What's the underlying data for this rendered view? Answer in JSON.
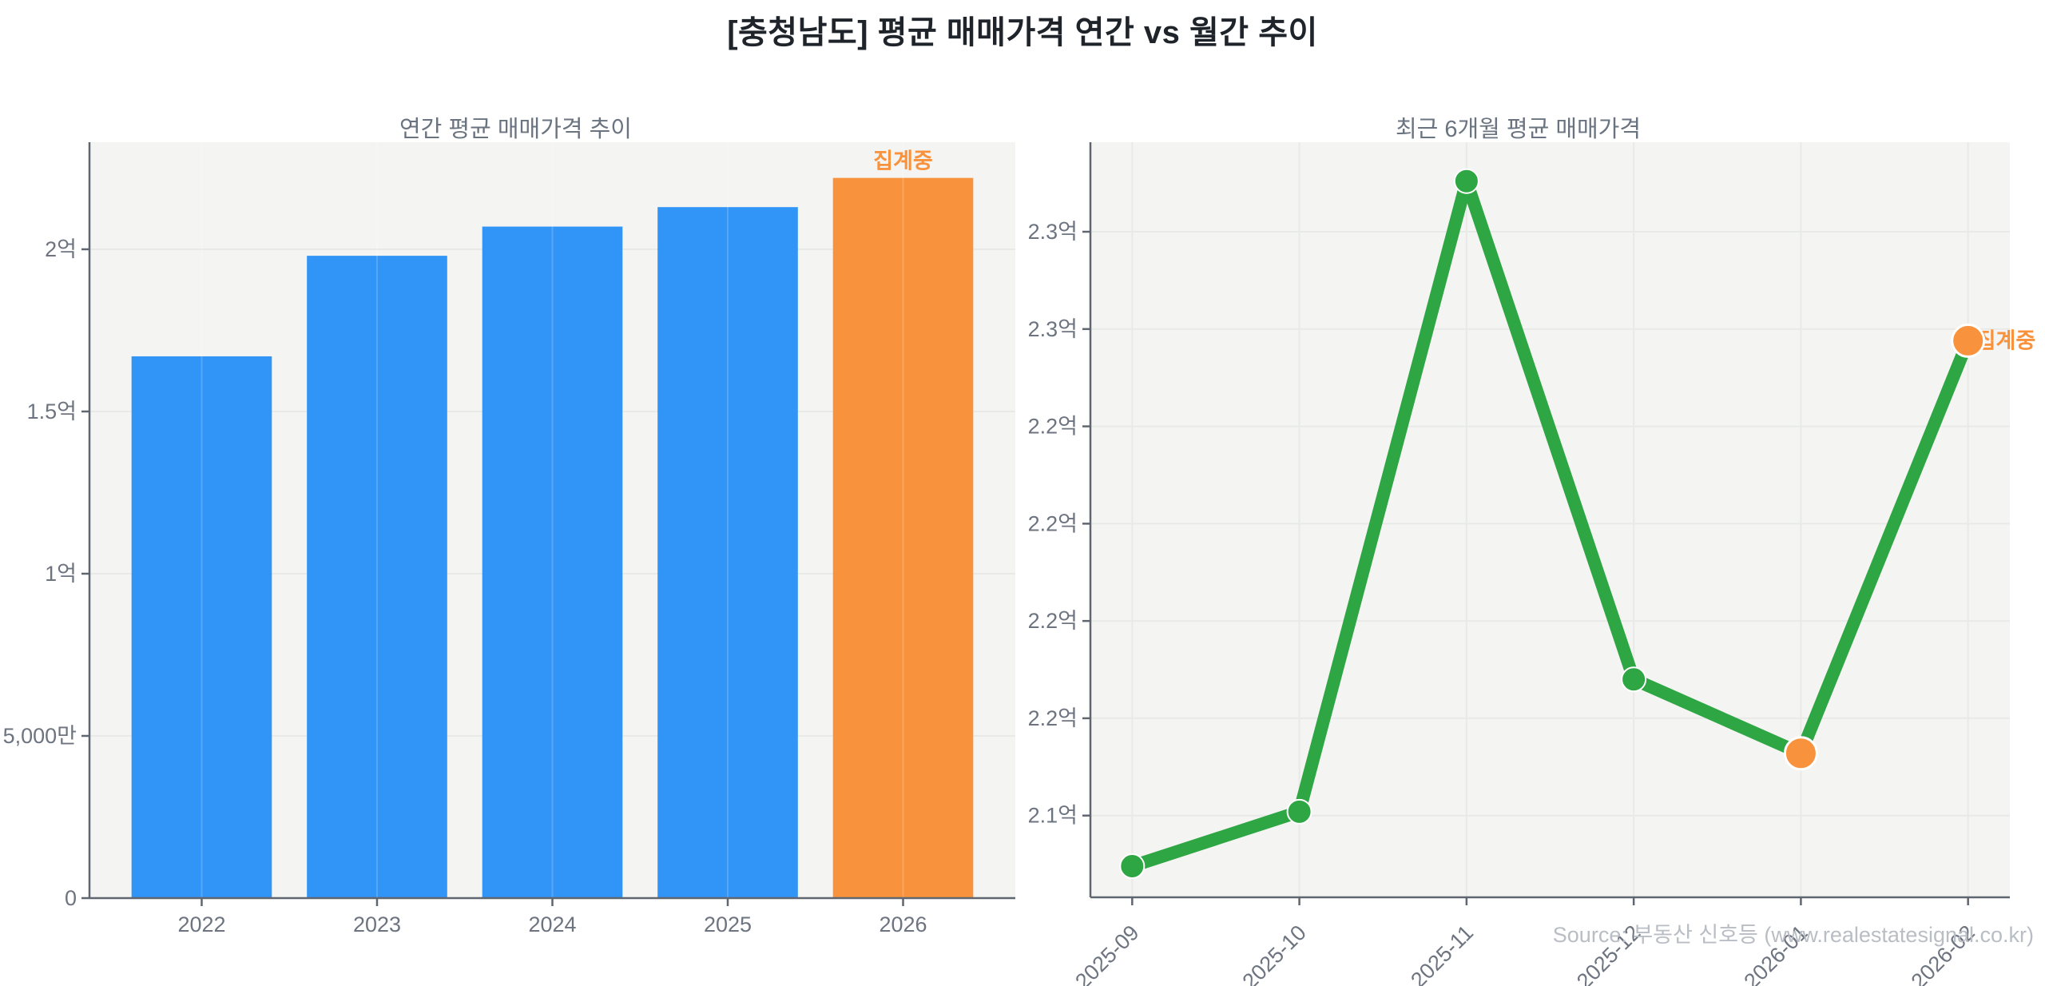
{
  "page": {
    "title": "[충청남도] 평균 매매가격 연간 vs 월간 추이",
    "source": "Source: 부동산 신호등 (www.realestatesignal.co.kr)"
  },
  "colors": {
    "panel_bg": "#f4f4f2",
    "gridline": "#e8eae8",
    "axis": "#5f6670",
    "tick_label": "#6d7480",
    "title": "#1f242b",
    "subtitle": "#6a7380",
    "bar_blue": "#3194f7",
    "highlight_orange": "#f8923d",
    "line_green": "#2ea643",
    "source_gray": "#b9bdc4"
  },
  "chart_data": [
    {
      "type": "bar",
      "title": "연간 평균 매매가격 추이",
      "categories": [
        "2022",
        "2023",
        "2024",
        "2025",
        "2026"
      ],
      "values": [
        167000000,
        198000000,
        207000000,
        213000000,
        222000000
      ],
      "unit": "KRW",
      "xlabel": "",
      "ylabel": "",
      "ylim": [
        0,
        233000000
      ],
      "yticks": [
        0,
        50000000,
        100000000,
        150000000,
        200000000
      ],
      "ytick_labels": [
        "0",
        "5,000만",
        "1억",
        "1.5억",
        "2억"
      ],
      "grid": true,
      "legend": "none",
      "highlight_index": 4,
      "highlight_label": "집계중"
    },
    {
      "type": "line",
      "title": "최근 6개월 평균 매매가격",
      "x": [
        "2025-09",
        "2025-10",
        "2025-11",
        "2025-12",
        "2026-01",
        "2026-02"
      ],
      "values": [
        216200000,
        217600000,
        233800000,
        221000000,
        219100000,
        229700000
      ],
      "unit": "KRW",
      "xlabel": "",
      "ylabel": "",
      "ylim": [
        215400000,
        234800000
      ],
      "yticks": [
        217500000,
        220000000,
        222500000,
        225000000,
        227500000,
        230000000,
        232500000
      ],
      "ytick_labels": [
        "2.1억",
        "2.2억",
        "2.2억",
        "2.2억",
        "2.2억",
        "2.3억",
        "2.3억"
      ],
      "grid": true,
      "legend": "none",
      "xtick_rotation": 45,
      "provisional_indices": [
        4,
        5
      ],
      "provisional_label": "집계중"
    }
  ]
}
